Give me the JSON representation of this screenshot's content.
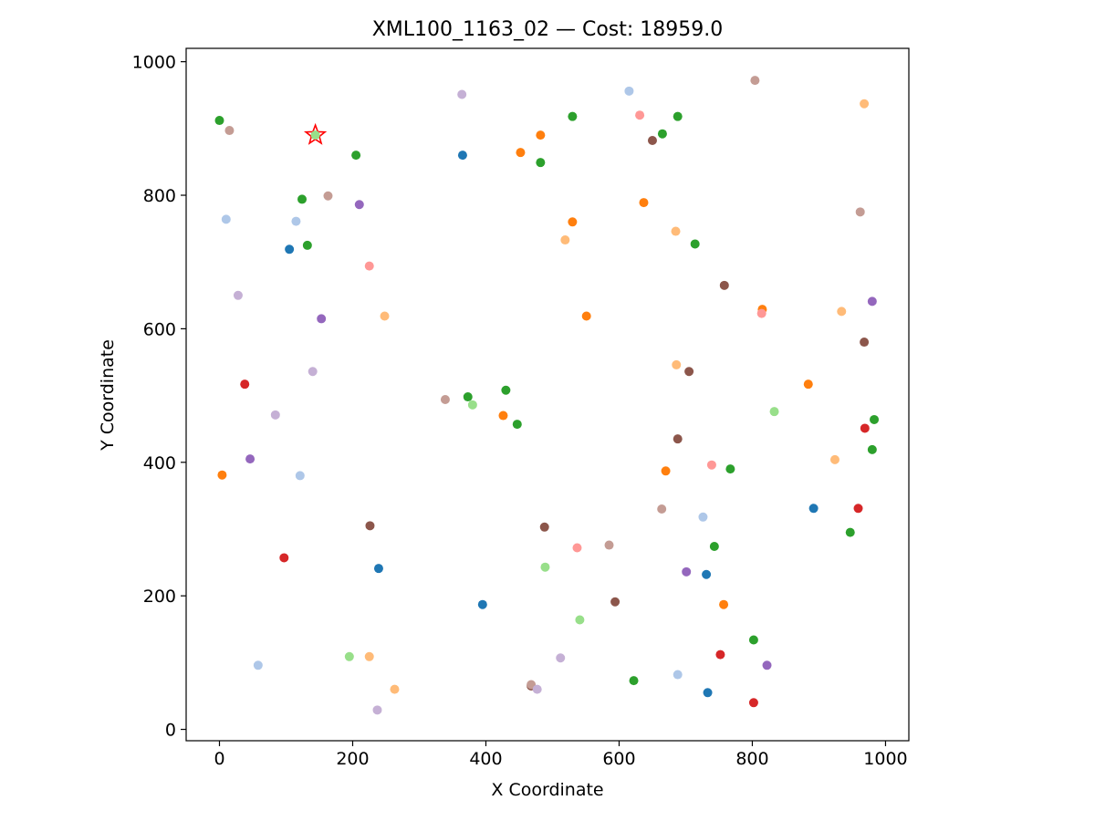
{
  "chart_data": {
    "type": "scatter",
    "title": "XML100_1163_02  —  Cost: 18959.0",
    "xlabel": "X Coordinate",
    "ylabel": "Y Coordinate",
    "xlim": [
      -50,
      1035
    ],
    "ylim": [
      -17,
      1020
    ],
    "xticks": [
      0,
      200,
      400,
      600,
      800,
      1000
    ],
    "yticks": [
      0,
      200,
      400,
      600,
      800,
      1000
    ],
    "xtick_labels": [
      "0",
      "200",
      "400",
      "600",
      "800",
      "1000"
    ],
    "ytick_labels": [
      "0",
      "200",
      "400",
      "600",
      "800",
      "1000"
    ],
    "grid": false,
    "legend": "none",
    "depot": {
      "x": 144,
      "y": 890,
      "marker": "star",
      "edge_color": "#ff0000",
      "fill_color": "#98df8a"
    },
    "points": [
      {
        "x": 0,
        "y": 912,
        "color": "#2ca02c"
      },
      {
        "x": 15,
        "y": 897,
        "color": "#c49c94"
      },
      {
        "x": 144,
        "y": 890,
        "color": "#98df8a"
      },
      {
        "x": 205,
        "y": 860,
        "color": "#2ca02c"
      },
      {
        "x": 124,
        "y": 794,
        "color": "#2ca02c"
      },
      {
        "x": 163,
        "y": 799,
        "color": "#c49c94"
      },
      {
        "x": 210,
        "y": 786,
        "color": "#9467bd"
      },
      {
        "x": 10,
        "y": 764,
        "color": "#aec7e8"
      },
      {
        "x": 115,
        "y": 761,
        "color": "#aec7e8"
      },
      {
        "x": 105,
        "y": 719,
        "color": "#1f77b4"
      },
      {
        "x": 132,
        "y": 725,
        "color": "#2ca02c"
      },
      {
        "x": 225,
        "y": 694,
        "color": "#ff9896"
      },
      {
        "x": 28,
        "y": 650,
        "color": "#c5b0d5"
      },
      {
        "x": 153,
        "y": 615,
        "color": "#9467bd"
      },
      {
        "x": 248,
        "y": 619,
        "color": "#ffbb78"
      },
      {
        "x": 140,
        "y": 536,
        "color": "#c5b0d5"
      },
      {
        "x": 38,
        "y": 517,
        "color": "#d62728"
      },
      {
        "x": 84,
        "y": 471,
        "color": "#c5b0d5"
      },
      {
        "x": 46,
        "y": 405,
        "color": "#9467bd"
      },
      {
        "x": 4,
        "y": 381,
        "color": "#ff7f0e"
      },
      {
        "x": 121,
        "y": 380,
        "color": "#aec7e8"
      },
      {
        "x": 226,
        "y": 305,
        "color": "#8c564b"
      },
      {
        "x": 97,
        "y": 257,
        "color": "#d62728"
      },
      {
        "x": 239,
        "y": 241,
        "color": "#1f77b4"
      },
      {
        "x": 58,
        "y": 96,
        "color": "#aec7e8"
      },
      {
        "x": 195,
        "y": 109,
        "color": "#98df8a"
      },
      {
        "x": 225,
        "y": 109,
        "color": "#ffbb78"
      },
      {
        "x": 263,
        "y": 60,
        "color": "#ffbb78"
      },
      {
        "x": 237,
        "y": 29,
        "color": "#c5b0d5"
      },
      {
        "x": 364,
        "y": 951,
        "color": "#c5b0d5"
      },
      {
        "x": 365,
        "y": 860,
        "color": "#1f77b4"
      },
      {
        "x": 452,
        "y": 864,
        "color": "#ff7f0e"
      },
      {
        "x": 482,
        "y": 890,
        "color": "#ff7f0e"
      },
      {
        "x": 482,
        "y": 849,
        "color": "#2ca02c"
      },
      {
        "x": 530,
        "y": 918,
        "color": "#2ca02c"
      },
      {
        "x": 530,
        "y": 760,
        "color": "#ff7f0e"
      },
      {
        "x": 519,
        "y": 733,
        "color": "#ffbb78"
      },
      {
        "x": 551,
        "y": 619,
        "color": "#ff7f0e"
      },
      {
        "x": 339,
        "y": 494,
        "color": "#c49c94"
      },
      {
        "x": 373,
        "y": 498,
        "color": "#2ca02c"
      },
      {
        "x": 380,
        "y": 486,
        "color": "#98df8a"
      },
      {
        "x": 430,
        "y": 508,
        "color": "#2ca02c"
      },
      {
        "x": 426,
        "y": 470,
        "color": "#ff7f0e"
      },
      {
        "x": 447,
        "y": 457,
        "color": "#2ca02c"
      },
      {
        "x": 488,
        "y": 303,
        "color": "#8c564b"
      },
      {
        "x": 537,
        "y": 272,
        "color": "#ff9896"
      },
      {
        "x": 489,
        "y": 243,
        "color": "#98df8a"
      },
      {
        "x": 395,
        "y": 187,
        "color": "#1f77b4"
      },
      {
        "x": 541,
        "y": 164,
        "color": "#98df8a"
      },
      {
        "x": 512,
        "y": 107,
        "color": "#c5b0d5"
      },
      {
        "x": 468,
        "y": 65,
        "color": "#8c564b"
      },
      {
        "x": 468,
        "y": 67,
        "color": "#c49c94"
      },
      {
        "x": 477,
        "y": 60,
        "color": "#c5b0d5"
      },
      {
        "x": 615,
        "y": 956,
        "color": "#aec7e8"
      },
      {
        "x": 631,
        "y": 920,
        "color": "#ff9896"
      },
      {
        "x": 688,
        "y": 918,
        "color": "#2ca02c"
      },
      {
        "x": 665,
        "y": 892,
        "color": "#2ca02c"
      },
      {
        "x": 650,
        "y": 882,
        "color": "#8c564b"
      },
      {
        "x": 637,
        "y": 789,
        "color": "#ff7f0e"
      },
      {
        "x": 685,
        "y": 746,
        "color": "#ffbb78"
      },
      {
        "x": 714,
        "y": 727,
        "color": "#2ca02c"
      },
      {
        "x": 758,
        "y": 665,
        "color": "#8c564b"
      },
      {
        "x": 686,
        "y": 546,
        "color": "#ffbb78"
      },
      {
        "x": 705,
        "y": 536,
        "color": "#8c564b"
      },
      {
        "x": 688,
        "y": 435,
        "color": "#8c564b"
      },
      {
        "x": 670,
        "y": 387,
        "color": "#ff7f0e"
      },
      {
        "x": 739,
        "y": 396,
        "color": "#ff9896"
      },
      {
        "x": 767,
        "y": 390,
        "color": "#2ca02c"
      },
      {
        "x": 664,
        "y": 330,
        "color": "#c49c94"
      },
      {
        "x": 726,
        "y": 318,
        "color": "#aec7e8"
      },
      {
        "x": 585,
        "y": 276,
        "color": "#c49c94"
      },
      {
        "x": 743,
        "y": 274,
        "color": "#2ca02c"
      },
      {
        "x": 701,
        "y": 236,
        "color": "#9467bd"
      },
      {
        "x": 731,
        "y": 232,
        "color": "#1f77b4"
      },
      {
        "x": 594,
        "y": 191,
        "color": "#8c564b"
      },
      {
        "x": 757,
        "y": 187,
        "color": "#ff7f0e"
      },
      {
        "x": 622,
        "y": 73,
        "color": "#2ca02c"
      },
      {
        "x": 688,
        "y": 82,
        "color": "#aec7e8"
      },
      {
        "x": 752,
        "y": 112,
        "color": "#d62728"
      },
      {
        "x": 733,
        "y": 55,
        "color": "#1f77b4"
      },
      {
        "x": 804,
        "y": 972,
        "color": "#c49c94"
      },
      {
        "x": 968,
        "y": 937,
        "color": "#ffbb78"
      },
      {
        "x": 962,
        "y": 775,
        "color": "#c49c94"
      },
      {
        "x": 815,
        "y": 629,
        "color": "#ff7f0e"
      },
      {
        "x": 814,
        "y": 623,
        "color": "#ff9896"
      },
      {
        "x": 934,
        "y": 626,
        "color": "#ffbb78"
      },
      {
        "x": 980,
        "y": 641,
        "color": "#9467bd"
      },
      {
        "x": 968,
        "y": 580,
        "color": "#8c564b"
      },
      {
        "x": 884,
        "y": 517,
        "color": "#ff7f0e"
      },
      {
        "x": 833,
        "y": 476,
        "color": "#98df8a"
      },
      {
        "x": 983,
        "y": 464,
        "color": "#2ca02c"
      },
      {
        "x": 969,
        "y": 451,
        "color": "#d62728"
      },
      {
        "x": 980,
        "y": 419,
        "color": "#2ca02c"
      },
      {
        "x": 924,
        "y": 404,
        "color": "#ffbb78"
      },
      {
        "x": 892,
        "y": 331,
        "color": "#1f77b4"
      },
      {
        "x": 959,
        "y": 331,
        "color": "#d62728"
      },
      {
        "x": 947,
        "y": 295,
        "color": "#2ca02c"
      },
      {
        "x": 802,
        "y": 134,
        "color": "#2ca02c"
      },
      {
        "x": 822,
        "y": 96,
        "color": "#9467bd"
      },
      {
        "x": 802,
        "y": 40,
        "color": "#d62728"
      }
    ]
  }
}
